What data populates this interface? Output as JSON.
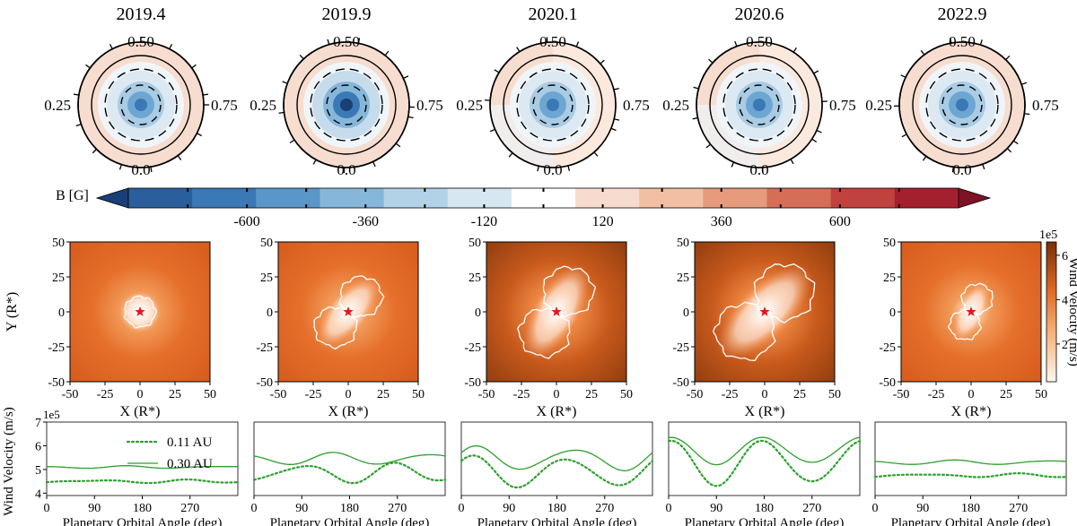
{
  "chart_data": {
    "type": "composite",
    "epochs": [
      "2019.4",
      "2019.9",
      "2020.1",
      "2020.6",
      "2022.9"
    ],
    "polar_maps": {
      "phase_labels": [
        "0.50",
        "0.25",
        "0.75",
        "0.0"
      ],
      "panels": [
        {
          "epoch": "2019.4",
          "center_strength": 0.55,
          "outer_ring": "pos_weak"
        },
        {
          "epoch": "2019.9",
          "center_strength": 0.95,
          "outer_ring": "pos_weak"
        },
        {
          "epoch": "2020.1",
          "center_strength": 0.75,
          "outer_ring": "mixed"
        },
        {
          "epoch": "2020.6",
          "center_strength": 0.55,
          "outer_ring": "mixed"
        },
        {
          "epoch": "2022.9",
          "center_strength": 0.6,
          "outer_ring": "pos_weak"
        }
      ]
    },
    "colorbar": {
      "label": "B [G]",
      "range": [
        -840,
        840
      ],
      "step": 120,
      "ticks": [
        "-600",
        "-360",
        "-120",
        "120",
        "360",
        "600"
      ],
      "colors": [
        "#2b5f9c",
        "#3b78b6",
        "#5b96c8",
        "#86b7da",
        "#b2d2e8",
        "#d7e7f2",
        "#ffffff",
        "#f7dccd",
        "#f2bfa3",
        "#e59b7c",
        "#d56d57",
        "#c1413f",
        "#a5202f"
      ],
      "extend_low_color": "#1a3f75",
      "extend_high_color": "#7e1226"
    },
    "wind_maps": {
      "xlabel": "X (R*)",
      "ylabel": "Y (R*)",
      "ticks": [
        "-50",
        "-25",
        "0",
        "25",
        "50"
      ],
      "range": [
        -50,
        50
      ],
      "colorbar_label": "Wind Velocity (m/s)",
      "colorbar_ticks": [
        "2",
        "4",
        "6"
      ],
      "colorbar_exponent": "1e5",
      "panels": [
        {
          "epoch": "2019.4",
          "type": "dipole_aligned",
          "tilt_deg": 0,
          "lobe_radius": 11
        },
        {
          "epoch": "2019.9",
          "type": "tilted",
          "tilt_deg": 40,
          "lobe_radius": 15
        },
        {
          "epoch": "2020.1",
          "type": "tilted",
          "tilt_deg": 30,
          "lobe_radius": 18
        },
        {
          "epoch": "2020.6",
          "type": "tilted",
          "tilt_deg": 45,
          "lobe_radius": 21
        },
        {
          "epoch": "2022.9",
          "type": "tilted",
          "tilt_deg": 25,
          "lobe_radius": 11
        }
      ]
    },
    "wind_profiles": {
      "xlabel": "Planetary Orbital Angle (deg)",
      "ylabel": "Wind Velocity (m/s)",
      "y_exponent": "1e5",
      "xticks": [
        0,
        90,
        180,
        270
      ],
      "xlim": [
        0,
        360
      ],
      "ylim": [
        3.9,
        7.0
      ],
      "yticks": [
        4,
        5,
        6,
        7
      ],
      "legend": [
        {
          "label": "0.11 AU",
          "style": "dotted"
        },
        {
          "label": "0.30 AU",
          "style": "solid"
        }
      ],
      "series_color": "#2ca02c",
      "panels": [
        {
          "epoch": "2019.4",
          "au011": {
            "mean": 4.5,
            "amp": 0.05,
            "ph": 0,
            "amp2": 0.03,
            "ph2": 30
          },
          "au030": {
            "mean": 5.1,
            "amp": 0.04,
            "ph": 60,
            "amp2": 0.02,
            "ph2": 0
          }
        },
        {
          "epoch": "2019.9",
          "au011": {
            "mean": 4.85,
            "amp": 0.35,
            "ph": 0,
            "amp2": 0.1,
            "ph2": 40
          },
          "au030": {
            "mean": 5.45,
            "amp": 0.22,
            "ph": 60,
            "amp2": 0.05,
            "ph2": 10
          }
        },
        {
          "epoch": "2020.1",
          "au011": {
            "mean": 4.9,
            "amp": 0.6,
            "ph": 110,
            "amp2": 0.1,
            "ph2": 0
          },
          "au030": {
            "mean": 5.45,
            "amp": 0.45,
            "ph": 300,
            "amp2": 0.1,
            "ph2": 20
          }
        },
        {
          "epoch": "2020.6",
          "au011": {
            "mean": 5.3,
            "amp": 0.9,
            "ph": 90,
            "amp2": 0.1,
            "ph2": 0
          },
          "au030": {
            "mean": 5.8,
            "amp": 0.55,
            "ph": 90,
            "amp2": 0.05,
            "ph2": 0
          }
        },
        {
          "epoch": "2022.9",
          "au011": {
            "mean": 4.75,
            "amp": 0.06,
            "ph": 0,
            "amp2": 0.03,
            "ph2": 0
          },
          "au030": {
            "mean": 5.3,
            "amp": 0.08,
            "ph": 60,
            "amp2": 0.02,
            "ph2": 0
          }
        }
      ]
    }
  }
}
